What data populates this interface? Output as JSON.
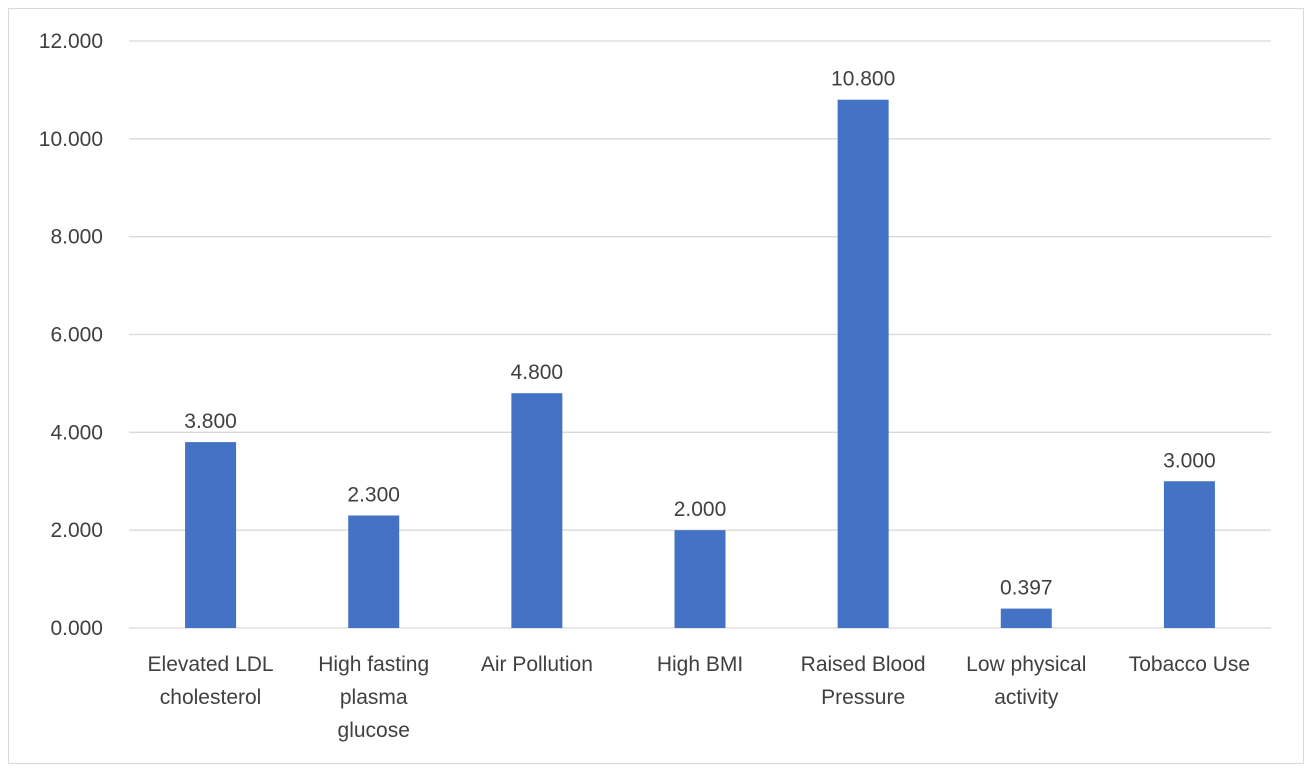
{
  "chart_data": {
    "type": "bar",
    "title": "",
    "xlabel": "",
    "ylabel": "",
    "categories": [
      [
        "Elevated LDL",
        "cholesterol"
      ],
      [
        "High fasting",
        "plasma",
        "glucose"
      ],
      [
        "Air Pollution"
      ],
      [
        "High BMI"
      ],
      [
        "Raised Blood",
        "Pressure"
      ],
      [
        "Low physical",
        "activity"
      ],
      [
        "Tobacco Use"
      ]
    ],
    "values": [
      3.8,
      2.3,
      4.8,
      2.0,
      10.8,
      0.397,
      3.0
    ],
    "value_labels": [
      "3.800",
      "2.300",
      "4.800",
      "2.000",
      "10.800",
      "0.397",
      "3.000"
    ],
    "ylim": [
      0,
      12
    ],
    "yticks": [
      0,
      2,
      4,
      6,
      8,
      10,
      12
    ],
    "ytick_labels": [
      "0.000",
      "2.000",
      "4.000",
      "6.000",
      "8.000",
      "10.000",
      "12.000"
    ],
    "grid": true,
    "legend": "none",
    "colors": {
      "bar": "#4472c4",
      "grid": "#d9d9d9",
      "text": "#404040"
    }
  }
}
